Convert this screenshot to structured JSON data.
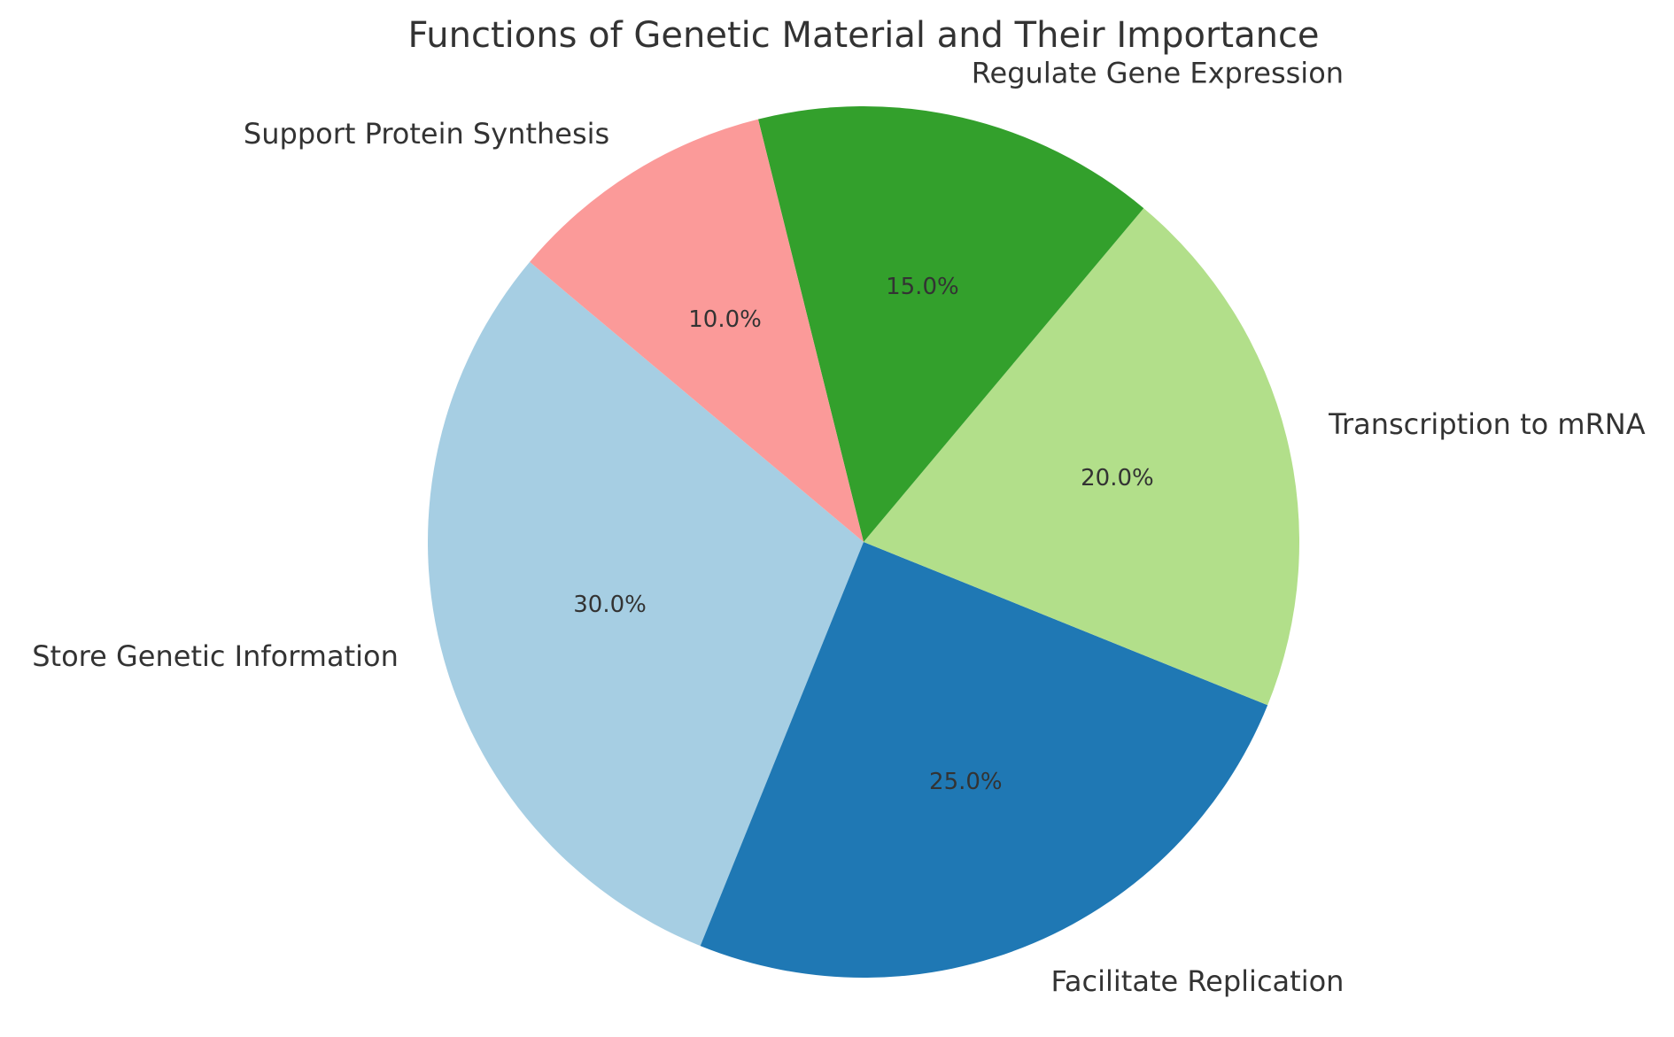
{
  "chart_data": {
    "type": "pie",
    "title": "Functions of Genetic Material and Their Importance",
    "categories": [
      "Store Genetic Information",
      "Facilitate Replication",
      "Transcription to mRNA",
      "Regulate Gene Expression",
      "Support Protein Synthesis"
    ],
    "values": [
      30,
      25,
      20,
      15,
      10
    ],
    "percent_labels": [
      "30.0%",
      "25.0%",
      "20.0%",
      "15.0%",
      "10.0%"
    ],
    "colors": [
      "#a6cee3",
      "#1f78b4",
      "#b2df8a",
      "#33a02c",
      "#fb9a99"
    ],
    "start_angle_deg": 140,
    "direction": "counterclockwise",
    "legend": "none"
  }
}
